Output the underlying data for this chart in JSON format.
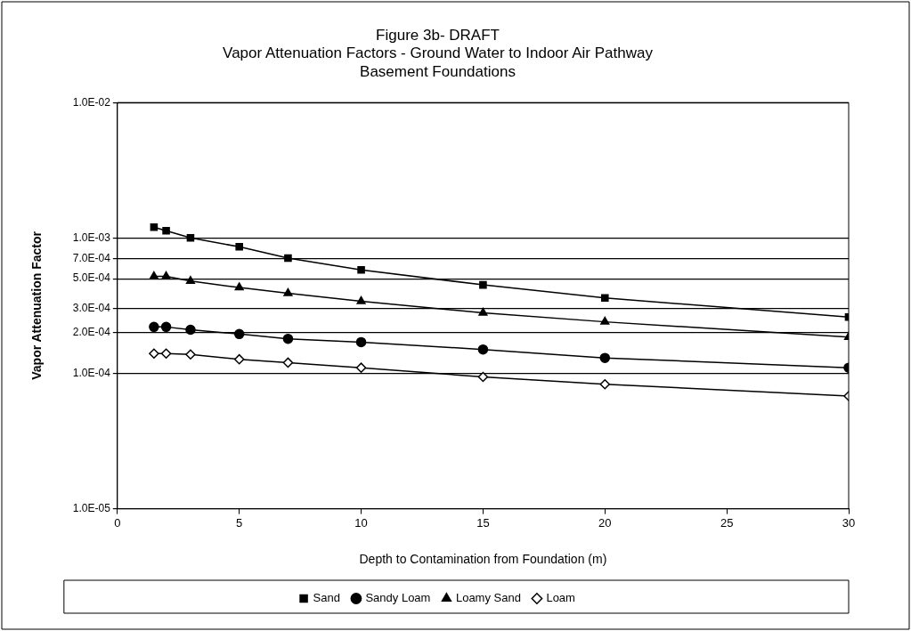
{
  "chart_data": {
    "type": "line",
    "title": "Figure 3b- DRAFT\nVapor Attenuation Factors - Ground Water to Indoor Air Pathway\nBasement Foundations",
    "xlabel": "Depth to Contamination from Foundation (m)",
    "ylabel": "Vapor Attenuation Factor",
    "x": [
      1.5,
      2,
      3,
      5,
      7,
      10,
      15,
      20,
      30
    ],
    "series": [
      {
        "name": "Sand",
        "color": "#000000",
        "marker": "square",
        "values": [
          0.0012,
          0.00113,
          0.001,
          0.00086,
          0.00071,
          0.00058,
          0.00045,
          0.00036,
          0.00026
        ]
      },
      {
        "name": "Sandy Loam",
        "color": "#000000",
        "marker": "circle",
        "values": [
          0.00022,
          0.00022,
          0.00021,
          0.000195,
          0.00018,
          0.00017,
          0.00015,
          0.00013,
          0.00011
        ]
      },
      {
        "name": "Loamy Sand",
        "color": "#000000",
        "marker": "triangle",
        "values": [
          0.00052,
          0.00052,
          0.00048,
          0.00043,
          0.00039,
          0.00034,
          0.00028,
          0.00024,
          0.000185
        ]
      },
      {
        "name": "Loam",
        "color": "#000000",
        "marker": "diamond",
        "values": [
          0.00014,
          0.00014,
          0.000138,
          0.000127,
          0.00012,
          0.00011,
          9.4e-05,
          8.3e-05,
          6.8e-05
        ]
      }
    ],
    "xlim": [
      0,
      30
    ],
    "xticks": [
      0,
      5,
      10,
      15,
      20,
      25,
      30
    ],
    "log": "y",
    "ylim": [
      1e-05,
      0.01
    ],
    "yticks": [
      {
        "value": 0.01,
        "label": "1.0E-02"
      },
      {
        "value": 0.001,
        "label": "1.0E-03"
      },
      {
        "value": 0.0007,
        "label": "7.0E-04"
      },
      {
        "value": 0.0005,
        "label": "5.0E-04"
      },
      {
        "value": 0.0003,
        "label": "3.0E-04"
      },
      {
        "value": 0.0002,
        "label": "2.0E-04"
      },
      {
        "value": 0.0001,
        "label": "1.0E-04"
      },
      {
        "value": 1e-05,
        "label": "1.0E-05"
      }
    ],
    "grid": "y",
    "legend": "bottom",
    "line_style": "solid"
  }
}
